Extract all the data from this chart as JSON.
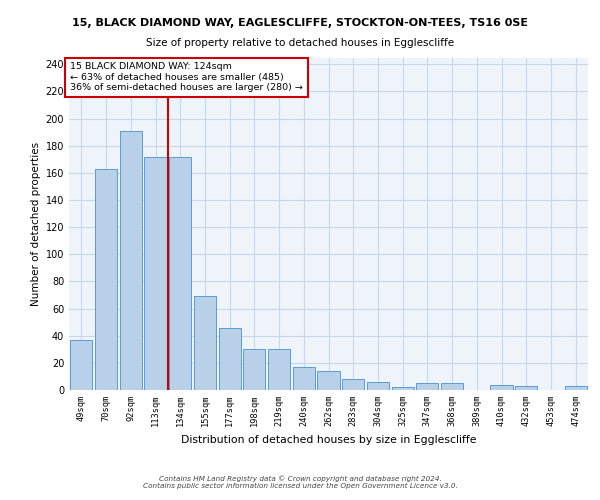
{
  "title1": "15, BLACK DIAMOND WAY, EAGLESCLIFFE, STOCKTON-ON-TEES, TS16 0SE",
  "title2": "Size of property relative to detached houses in Egglescliffe",
  "xlabel": "Distribution of detached houses by size in Egglescliffe",
  "ylabel": "Number of detached properties",
  "categories": [
    "49sqm",
    "70sqm",
    "92sqm",
    "113sqm",
    "134sqm",
    "155sqm",
    "177sqm",
    "198sqm",
    "219sqm",
    "240sqm",
    "262sqm",
    "283sqm",
    "304sqm",
    "325sqm",
    "347sqm",
    "368sqm",
    "389sqm",
    "410sqm",
    "432sqm",
    "453sqm",
    "474sqm"
  ],
  "values": [
    37,
    163,
    191,
    172,
    172,
    69,
    46,
    30,
    30,
    17,
    14,
    8,
    6,
    2,
    5,
    5,
    0,
    4,
    3,
    0,
    3
  ],
  "bar_color": "#b8d0e8",
  "bar_edge_color": "#5b9bd5",
  "vline_x": 3.5,
  "vline_color": "#cc0000",
  "annotation_text": "15 BLACK DIAMOND WAY: 124sqm\n← 63% of detached houses are smaller (485)\n36% of semi-detached houses are larger (280) →",
  "annotation_box_color": "#ffffff",
  "annotation_box_edge": "#cc0000",
  "footer1": "Contains HM Land Registry data © Crown copyright and database right 2024.",
  "footer2": "Contains public sector information licensed under the Open Government Licence v3.0.",
  "ylim": [
    0,
    245
  ],
  "yticks": [
    0,
    20,
    40,
    60,
    80,
    100,
    120,
    140,
    160,
    180,
    200,
    220,
    240
  ],
  "grid_color": "#c8d8e8",
  "bg_color": "#eef4fa"
}
